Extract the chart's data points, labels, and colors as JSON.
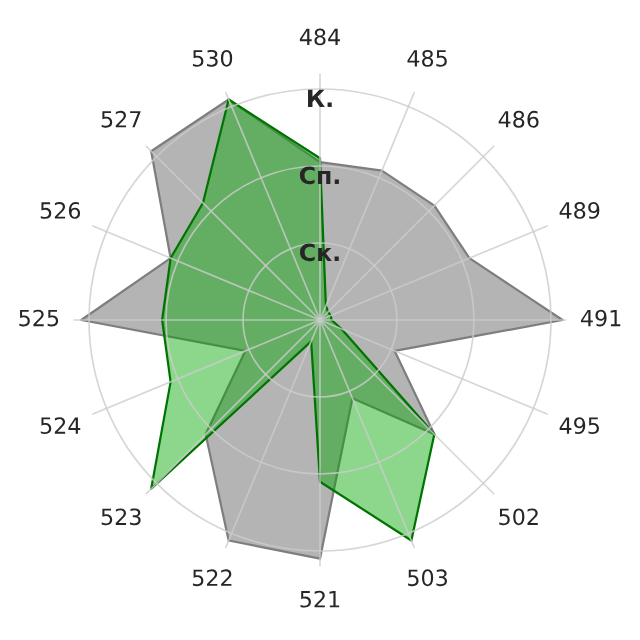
{
  "chart_data": {
    "type": "radar",
    "categories": [
      "484",
      "485",
      "486",
      "489",
      "491",
      "495",
      "502",
      "503",
      "521",
      "522",
      "523",
      "524",
      "525",
      "526",
      "527",
      "530"
    ],
    "series": [
      {
        "color": "#b4b4b4",
        "values": [
          2.05,
          2.1,
          2.1,
          2.1,
          3.15,
          1.05,
          2.1,
          1.1,
          3.1,
          3.1,
          2.1,
          1.05,
          3.1,
          2.1,
          3.1,
          3.1
        ]
      },
      {
        "color": "#00a600",
        "values": [
          2.1,
          0.2,
          0.15,
          0.15,
          0.15,
          0.3,
          2.1,
          3.1,
          2.1,
          0.3,
          3.1,
          2.1,
          2.05,
          2.1,
          2.15,
          3.1
        ]
      }
    ],
    "ylim": [
      0,
      3.2
    ],
    "yticks": [
      {
        "value": 1,
        "label": "Ск."
      },
      {
        "value": 2,
        "label": "Сп."
      },
      {
        "value": 3,
        "label": "К."
      }
    ],
    "grid": true
  }
}
